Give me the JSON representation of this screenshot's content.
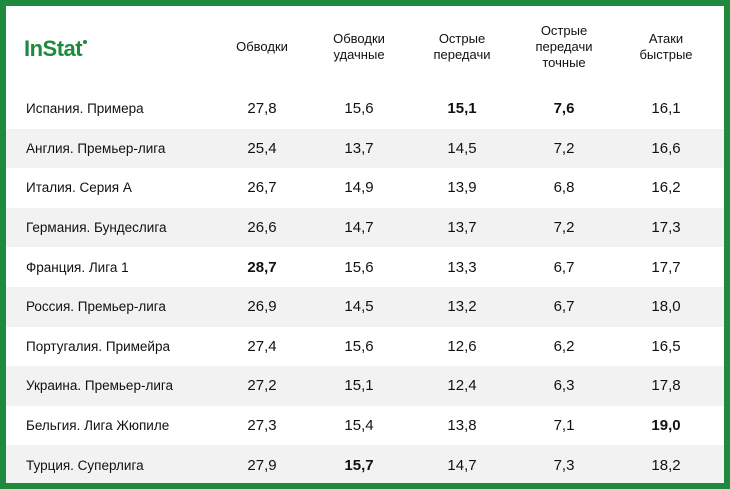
{
  "brand": {
    "logo_text": "InStat"
  },
  "columns": [
    "Обводки",
    "Обводки удачные",
    "Острые передачи",
    "Острые передачи точные",
    "Атаки быстрые"
  ],
  "rows": [
    {
      "league": "Испания. Примера",
      "values": [
        "27,8",
        "15,6",
        "15,1",
        "7,6",
        "16,1"
      ],
      "bold": [
        false,
        false,
        true,
        true,
        false
      ]
    },
    {
      "league": "Англия. Премьер-лига",
      "values": [
        "25,4",
        "13,7",
        "14,5",
        "7,2",
        "16,6"
      ],
      "bold": [
        false,
        false,
        false,
        false,
        false
      ]
    },
    {
      "league": "Италия. Серия А",
      "values": [
        "26,7",
        "14,9",
        "13,9",
        "6,8",
        "16,2"
      ],
      "bold": [
        false,
        false,
        false,
        false,
        false
      ]
    },
    {
      "league": "Германия. Бундеслига",
      "values": [
        "26,6",
        "14,7",
        "13,7",
        "7,2",
        "17,3"
      ],
      "bold": [
        false,
        false,
        false,
        false,
        false
      ]
    },
    {
      "league": "Франция. Лига 1",
      "values": [
        "28,7",
        "15,6",
        "13,3",
        "6,7",
        "17,7"
      ],
      "bold": [
        true,
        false,
        false,
        false,
        false
      ]
    },
    {
      "league": "Россия. Премьер-лига",
      "values": [
        "26,9",
        "14,5",
        "13,2",
        "6,7",
        "18,0"
      ],
      "bold": [
        false,
        false,
        false,
        false,
        false
      ]
    },
    {
      "league": "Португалия. Примейра",
      "values": [
        "27,4",
        "15,6",
        "12,6",
        "6,2",
        "16,5"
      ],
      "bold": [
        false,
        false,
        false,
        false,
        false
      ]
    },
    {
      "league": "Украина. Премьер-лига",
      "values": [
        "27,2",
        "15,1",
        "12,4",
        "6,3",
        "17,8"
      ],
      "bold": [
        false,
        false,
        false,
        false,
        false
      ]
    },
    {
      "league": "Бельгия. Лига Жюпиле",
      "values": [
        "27,3",
        "15,4",
        "13,8",
        "7,1",
        "19,0"
      ],
      "bold": [
        false,
        false,
        false,
        false,
        true
      ]
    },
    {
      "league": "Турция. Суперлига",
      "values": [
        "27,9",
        "15,7",
        "14,7",
        "7,3",
        "18,2"
      ],
      "bold": [
        false,
        true,
        false,
        false,
        false
      ]
    }
  ],
  "colors": {
    "brand_green": "#1e8a3e",
    "row_shade": "#f2f2f2",
    "text": "#111111"
  }
}
